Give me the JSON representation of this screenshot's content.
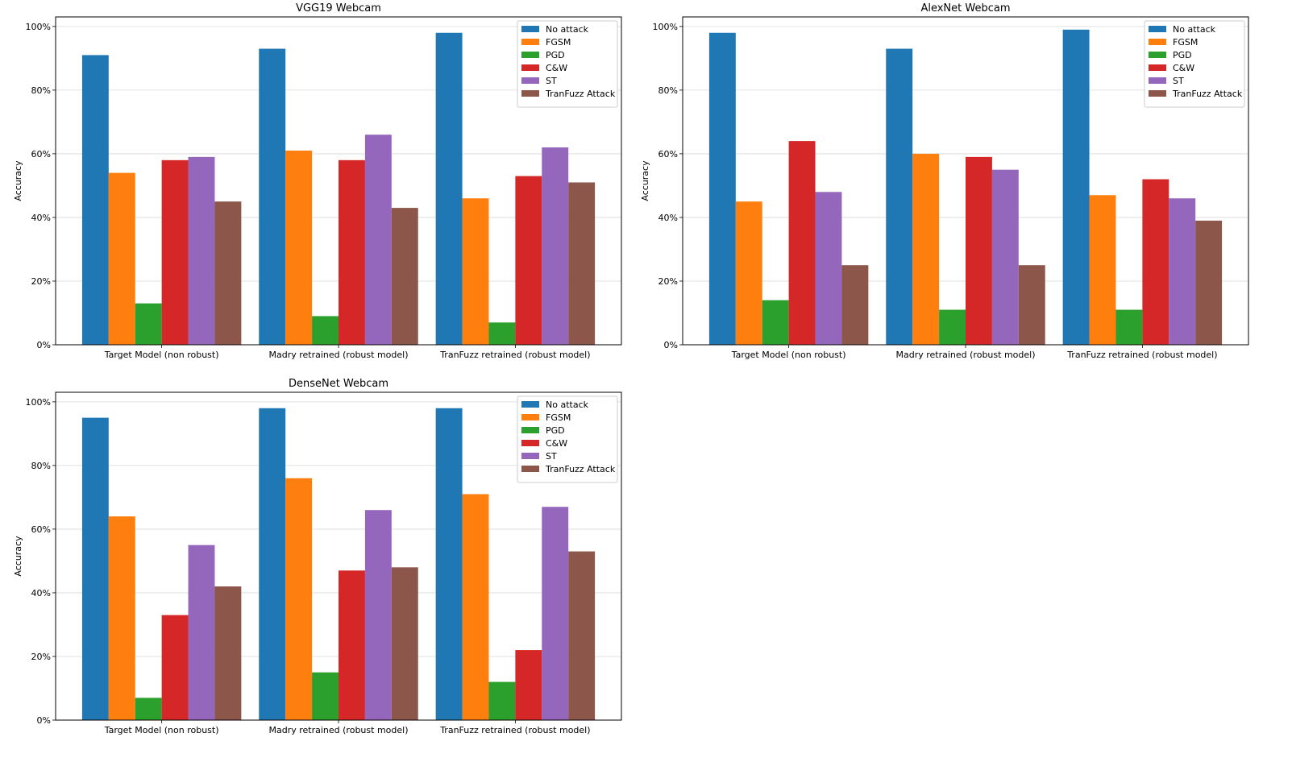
{
  "series_colors": [
    "#1f77b4",
    "#ff7f0e",
    "#2ca02c",
    "#d62728",
    "#9467bd",
    "#8c564b"
  ],
  "chart_data": [
    {
      "type": "bar",
      "title": "VGG19 Webcam",
      "xlabel": "",
      "ylabel": "Accuracy",
      "ylim": [
        0,
        1.03
      ],
      "yticks": [
        "0%",
        "20%",
        "40%",
        "60%",
        "80%",
        "100%"
      ],
      "grid": "horizontal",
      "legend_position": "top-right",
      "categories": [
        "Target Model (non robust)",
        "Madry retrained (robust model)",
        "TranFuzz retrained (robust model)"
      ],
      "series": [
        {
          "name": "No attack",
          "values": [
            0.91,
            0.93,
            0.98
          ]
        },
        {
          "name": "FGSM",
          "values": [
            0.54,
            0.61,
            0.46
          ]
        },
        {
          "name": "PGD",
          "values": [
            0.13,
            0.09,
            0.07
          ]
        },
        {
          "name": "C&W",
          "values": [
            0.58,
            0.58,
            0.53
          ]
        },
        {
          "name": "ST",
          "values": [
            0.59,
            0.66,
            0.62
          ]
        },
        {
          "name": "TranFuzz Attack",
          "values": [
            0.45,
            0.43,
            0.51
          ]
        }
      ]
    },
    {
      "type": "bar",
      "title": "AlexNet Webcam",
      "xlabel": "",
      "ylabel": "Accuracy",
      "ylim": [
        0,
        1.03
      ],
      "yticks": [
        "0%",
        "20%",
        "40%",
        "60%",
        "80%",
        "100%"
      ],
      "grid": "horizontal",
      "legend_position": "top-right",
      "categories": [
        "Target Model (non robust)",
        "Madry retrained (robust model)",
        "TranFuzz retrained (robust model)"
      ],
      "series": [
        {
          "name": "No attack",
          "values": [
            0.98,
            0.93,
            0.99
          ]
        },
        {
          "name": "FGSM",
          "values": [
            0.45,
            0.6,
            0.47
          ]
        },
        {
          "name": "PGD",
          "values": [
            0.14,
            0.11,
            0.11
          ]
        },
        {
          "name": "C&W",
          "values": [
            0.64,
            0.59,
            0.52
          ]
        },
        {
          "name": "ST",
          "values": [
            0.48,
            0.55,
            0.46
          ]
        },
        {
          "name": "TranFuzz Attack",
          "values": [
            0.25,
            0.25,
            0.39
          ]
        }
      ]
    },
    {
      "type": "bar",
      "title": "DenseNet Webcam",
      "xlabel": "",
      "ylabel": "Accuracy",
      "ylim": [
        0,
        1.03
      ],
      "yticks": [
        "0%",
        "20%",
        "40%",
        "60%",
        "80%",
        "100%"
      ],
      "grid": "horizontal",
      "legend_position": "top-right",
      "categories": [
        "Target Model (non robust)",
        "Madry retrained (robust model)",
        "TranFuzz retrained (robust model)"
      ],
      "series": [
        {
          "name": "No attack",
          "values": [
            0.95,
            0.98,
            0.98
          ]
        },
        {
          "name": "FGSM",
          "values": [
            0.64,
            0.76,
            0.71
          ]
        },
        {
          "name": "PGD",
          "values": [
            0.07,
            0.15,
            0.12
          ]
        },
        {
          "name": "C&W",
          "values": [
            0.33,
            0.47,
            0.22
          ]
        },
        {
          "name": "ST",
          "values": [
            0.55,
            0.66,
            0.67
          ]
        },
        {
          "name": "TranFuzz Attack",
          "values": [
            0.42,
            0.48,
            0.53
          ]
        }
      ]
    }
  ]
}
